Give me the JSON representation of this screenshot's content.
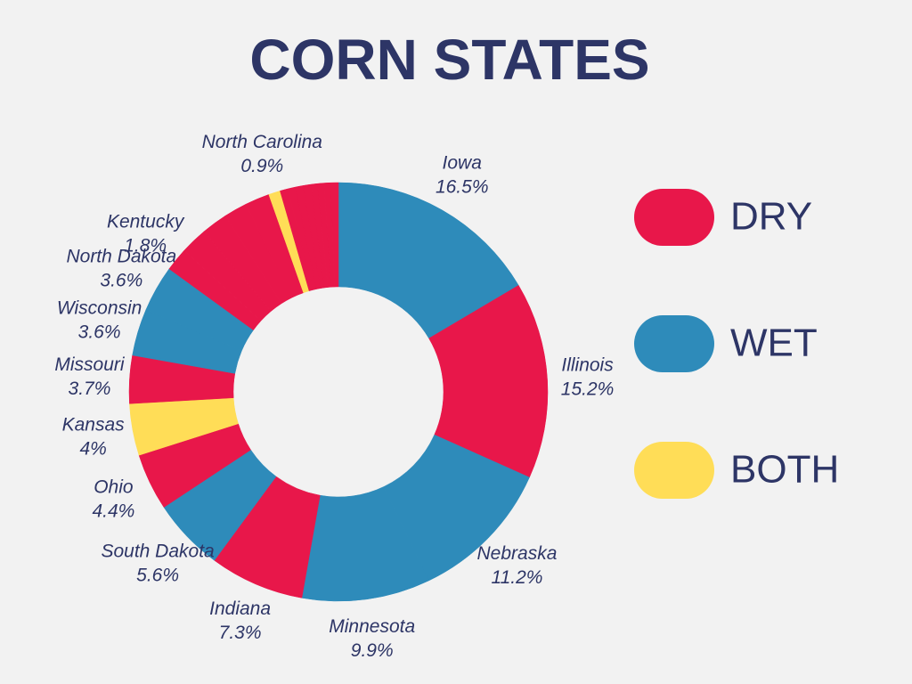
{
  "chart_data": {
    "type": "donut",
    "title": "CORN STATES",
    "categories": [
      "Iowa",
      "Illinois",
      "Nebraska",
      "Minnesota",
      "Indiana",
      "South Dakota",
      "Ohio",
      "Kansas",
      "Missouri",
      "Wisconsin",
      "North Dakota",
      "Kentucky",
      null,
      null,
      null,
      null,
      "North Carolina",
      null,
      null,
      null,
      null,
      null,
      null,
      null,
      null
    ],
    "values": [
      16.5,
      15.2,
      11.2,
      9.9,
      7.3,
      5.6,
      4.4,
      4,
      3.7,
      3.6,
      3.6,
      1.8,
      2.1,
      2.0,
      1.8,
      1.9,
      0.9,
      0.6,
      0.6,
      0.6,
      0.6,
      0.5,
      0.5,
      0.5,
      0.6
    ],
    "value_labels": [
      "16.5%",
      "15.2%",
      "11.2%",
      "9.9%",
      "7.3%",
      "5.6%",
      "4.4%",
      "4%",
      "3.7%",
      "3.6%",
      "3.6%",
      "1.8%",
      null,
      null,
      null,
      null,
      "0.9%",
      null,
      null,
      null,
      null,
      null,
      null,
      null,
      null
    ],
    "colors": [
      "#2e8bba",
      "#e8174a",
      "#2e8bba",
      "#2e8bba",
      "#e8174a",
      "#2e8bba",
      "#e8174a",
      "#ffdd57",
      "#e8174a",
      "#2e8bba",
      "#2e8bba",
      "#e8174a",
      "#e8174a",
      "#e8174a",
      "#e8174a",
      "#e8174a",
      "#ffdd57",
      "#e8174a",
      "#e8174a",
      "#e8174a",
      "#e8174a",
      "#e8174a",
      "#e8174a",
      "#e8174a",
      "#e8174a"
    ],
    "legend": [
      {
        "name": "DRY",
        "color": "#e8174a"
      },
      {
        "name": "WET",
        "color": "#2e8bba"
      },
      {
        "name": "BOTH",
        "color": "#ffdd57"
      }
    ]
  }
}
